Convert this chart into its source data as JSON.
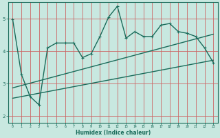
{
  "xlabel": "Humidex (Indice chaleur)",
  "bg_color": "#c8e8e0",
  "grid_color": "#cc6666",
  "line_color": "#1a6b5a",
  "xlim": [
    -0.5,
    23.5
  ],
  "ylim": [
    1.8,
    5.5
  ],
  "xticks": [
    0,
    1,
    2,
    3,
    4,
    5,
    6,
    7,
    8,
    9,
    10,
    11,
    12,
    13,
    14,
    15,
    16,
    17,
    18,
    19,
    20,
    21,
    22,
    23
  ],
  "yticks": [
    2,
    3,
    4,
    5
  ],
  "jagged_x": [
    0,
    1,
    2,
    3,
    4,
    5,
    6,
    7,
    8,
    9,
    10,
    11,
    12,
    13,
    14,
    15,
    16,
    17,
    18,
    19,
    20,
    21,
    22,
    23
  ],
  "jagged_y": [
    4.97,
    3.28,
    2.6,
    2.35,
    4.1,
    4.25,
    4.25,
    4.25,
    3.8,
    3.92,
    4.45,
    5.05,
    5.38,
    4.4,
    4.6,
    4.45,
    4.45,
    4.8,
    4.85,
    4.6,
    4.55,
    4.45,
    4.1,
    3.65
  ],
  "line1_x": [
    0,
    23
  ],
  "line1_y": [
    2.55,
    3.72
  ],
  "line2_x": [
    0,
    23
  ],
  "line2_y": [
    2.87,
    4.52
  ],
  "marker": "+"
}
